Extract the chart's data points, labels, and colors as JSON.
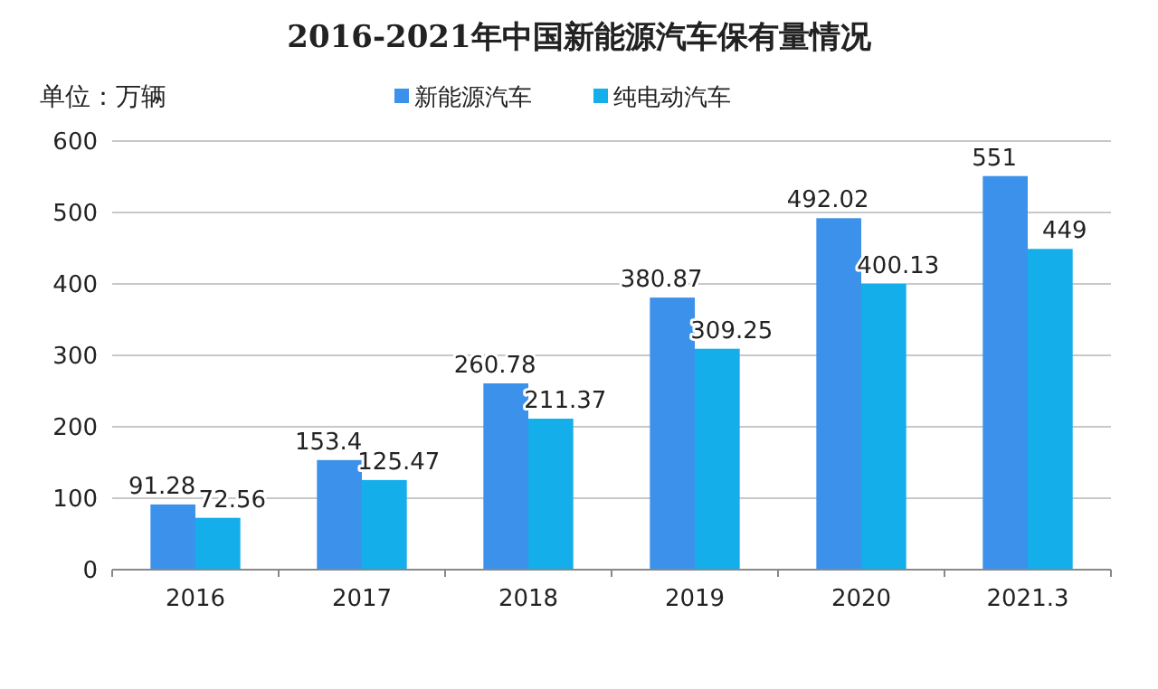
{
  "chart_data": {
    "type": "bar",
    "title": "2016-2021年中国新能源汽车保有量情况",
    "ylabel": "单位：万辆",
    "categories": [
      "2016",
      "2017",
      "2018",
      "2019",
      "2020",
      "2021.3"
    ],
    "series": [
      {
        "name": "新能源汽车",
        "color": "#3c92ea",
        "values": [
          91.28,
          153.4,
          260.78,
          380.87,
          492.02,
          551
        ]
      },
      {
        "name": "纯电动汽车",
        "color": "#14aeea",
        "values": [
          72.56,
          125.47,
          211.37,
          309.25,
          400.13,
          449
        ]
      }
    ],
    "ylim": [
      0,
      600
    ],
    "yticks": [
      0,
      100,
      200,
      300,
      400,
      500,
      600
    ],
    "grid": "y",
    "legend": "top",
    "data_labels": true
  }
}
